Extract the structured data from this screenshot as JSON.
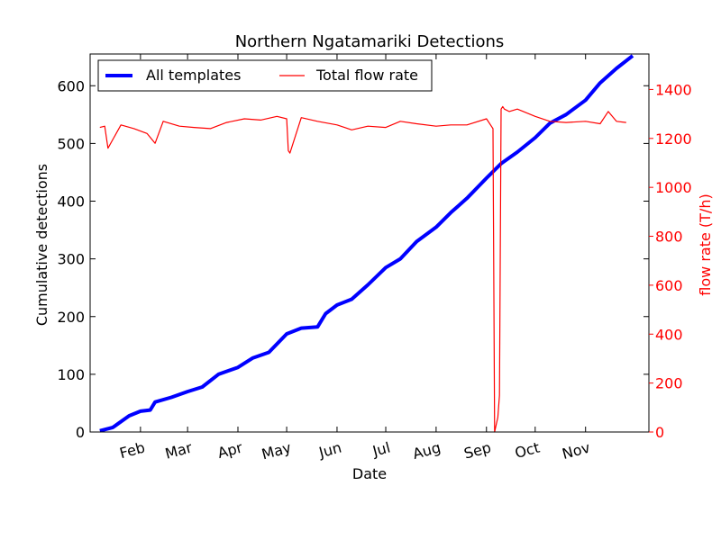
{
  "chart_data": {
    "type": "line",
    "title": "Northern Ngatamariki Detections",
    "xlabel": "Date",
    "ylabel_left": "Cumulative detections",
    "ylabel_right": "flow rate (T/h)",
    "x_ticks": [
      "Feb",
      "Mar",
      "Apr",
      "May",
      "Jun",
      "Jul",
      "Aug",
      "Sep",
      "Oct",
      "Nov"
    ],
    "ylim_left": [
      0,
      655
    ],
    "ylim_right": [
      0,
      1545
    ],
    "y_ticks_left": [
      0,
      100,
      200,
      300,
      400,
      500,
      600
    ],
    "y_ticks_right": [
      0,
      200,
      400,
      600,
      800,
      1000,
      1200,
      1400
    ],
    "legend_position": "top-left",
    "grid": false,
    "colors": {
      "detections": "#0000ff",
      "flow": "#ff0000",
      "right_axis": "#ff0000"
    },
    "series": [
      {
        "name": "All templates",
        "axis": "left",
        "x": [
          "Jan 07",
          "Jan 15",
          "Jan 25",
          "Feb 01",
          "Feb 07",
          "Feb 10",
          "Feb 20",
          "Mar 01",
          "Mar 10",
          "Mar 20",
          "Apr 01",
          "Apr 10",
          "Apr 20",
          "May 01",
          "May 10",
          "May 20",
          "May 25",
          "Jun 01",
          "Jun 10",
          "Jun 20",
          "Jul 01",
          "Jul 10",
          "Jul 20",
          "Aug 01",
          "Aug 10",
          "Aug 20",
          "Sep 01",
          "Sep 10",
          "Sep 20",
          "Oct 01",
          "Oct 10",
          "Oct 20",
          "Nov 01",
          "Nov 10",
          "Nov 20",
          "Nov 30"
        ],
        "values": [
          2,
          8,
          28,
          36,
          38,
          52,
          60,
          70,
          78,
          100,
          112,
          128,
          138,
          170,
          180,
          182,
          205,
          220,
          230,
          255,
          285,
          300,
          330,
          355,
          380,
          405,
          440,
          465,
          485,
          510,
          535,
          550,
          575,
          605,
          630,
          652
        ]
      },
      {
        "name": "Total flow rate",
        "axis": "right",
        "x": [
          "Jan 07",
          "Jan 10",
          "Jan 12",
          "Jan 20",
          "Jan 28",
          "Feb 05",
          "Feb 10",
          "Feb 15",
          "Feb 25",
          "Mar 05",
          "Mar 15",
          "Mar 25",
          "Apr 05",
          "Apr 15",
          "Apr 25",
          "May 01",
          "May 02",
          "May 03",
          "May 10",
          "May 20",
          "Jun 01",
          "Jun 10",
          "Jun 20",
          "Jul 01",
          "Jul 10",
          "Jul 20",
          "Aug 01",
          "Aug 10",
          "Aug 20",
          "Sep 01",
          "Sep 05",
          "Sep 06",
          "Sep 07",
          "Sep 08",
          "Sep 09",
          "Sep 10",
          "Sep 11",
          "Sep 12",
          "Sep 15",
          "Sep 20",
          "Oct 01",
          "Oct 10",
          "Oct 20",
          "Nov 01",
          "Nov 10",
          "Nov 15",
          "Nov 20",
          "Nov 26"
        ],
        "values": [
          1245,
          1250,
          1160,
          1255,
          1240,
          1220,
          1180,
          1270,
          1250,
          1245,
          1240,
          1265,
          1280,
          1275,
          1290,
          1280,
          1150,
          1140,
          1285,
          1270,
          1255,
          1235,
          1250,
          1245,
          1270,
          1260,
          1250,
          1255,
          1255,
          1280,
          1240,
          0,
          30,
          60,
          150,
          1320,
          1330,
          1320,
          1310,
          1320,
          1290,
          1270,
          1265,
          1270,
          1260,
          1310,
          1270,
          1265
        ]
      }
    ]
  }
}
